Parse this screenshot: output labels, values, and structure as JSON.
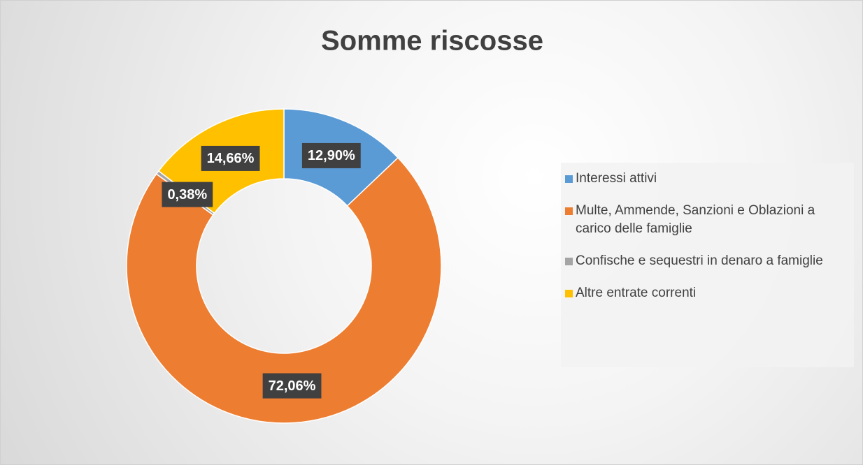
{
  "chart_data": {
    "type": "donut",
    "title": "Somme riscosse",
    "categories": [
      "Interessi attivi",
      "Multe, Ammende, Sanzioni e Oblazioni a carico delle famiglie",
      "Confische e sequestri in denaro a famiglie",
      "Altre entrate correnti"
    ],
    "values": [
      12.9,
      72.06,
      0.38,
      14.66
    ],
    "value_labels": [
      "12,90%",
      "72,06%",
      "0,38%",
      "14,66%"
    ],
    "colors": [
      "#5b9bd5",
      "#ed7d31",
      "#a5a5a5",
      "#ffc000"
    ],
    "legend": "right"
  }
}
